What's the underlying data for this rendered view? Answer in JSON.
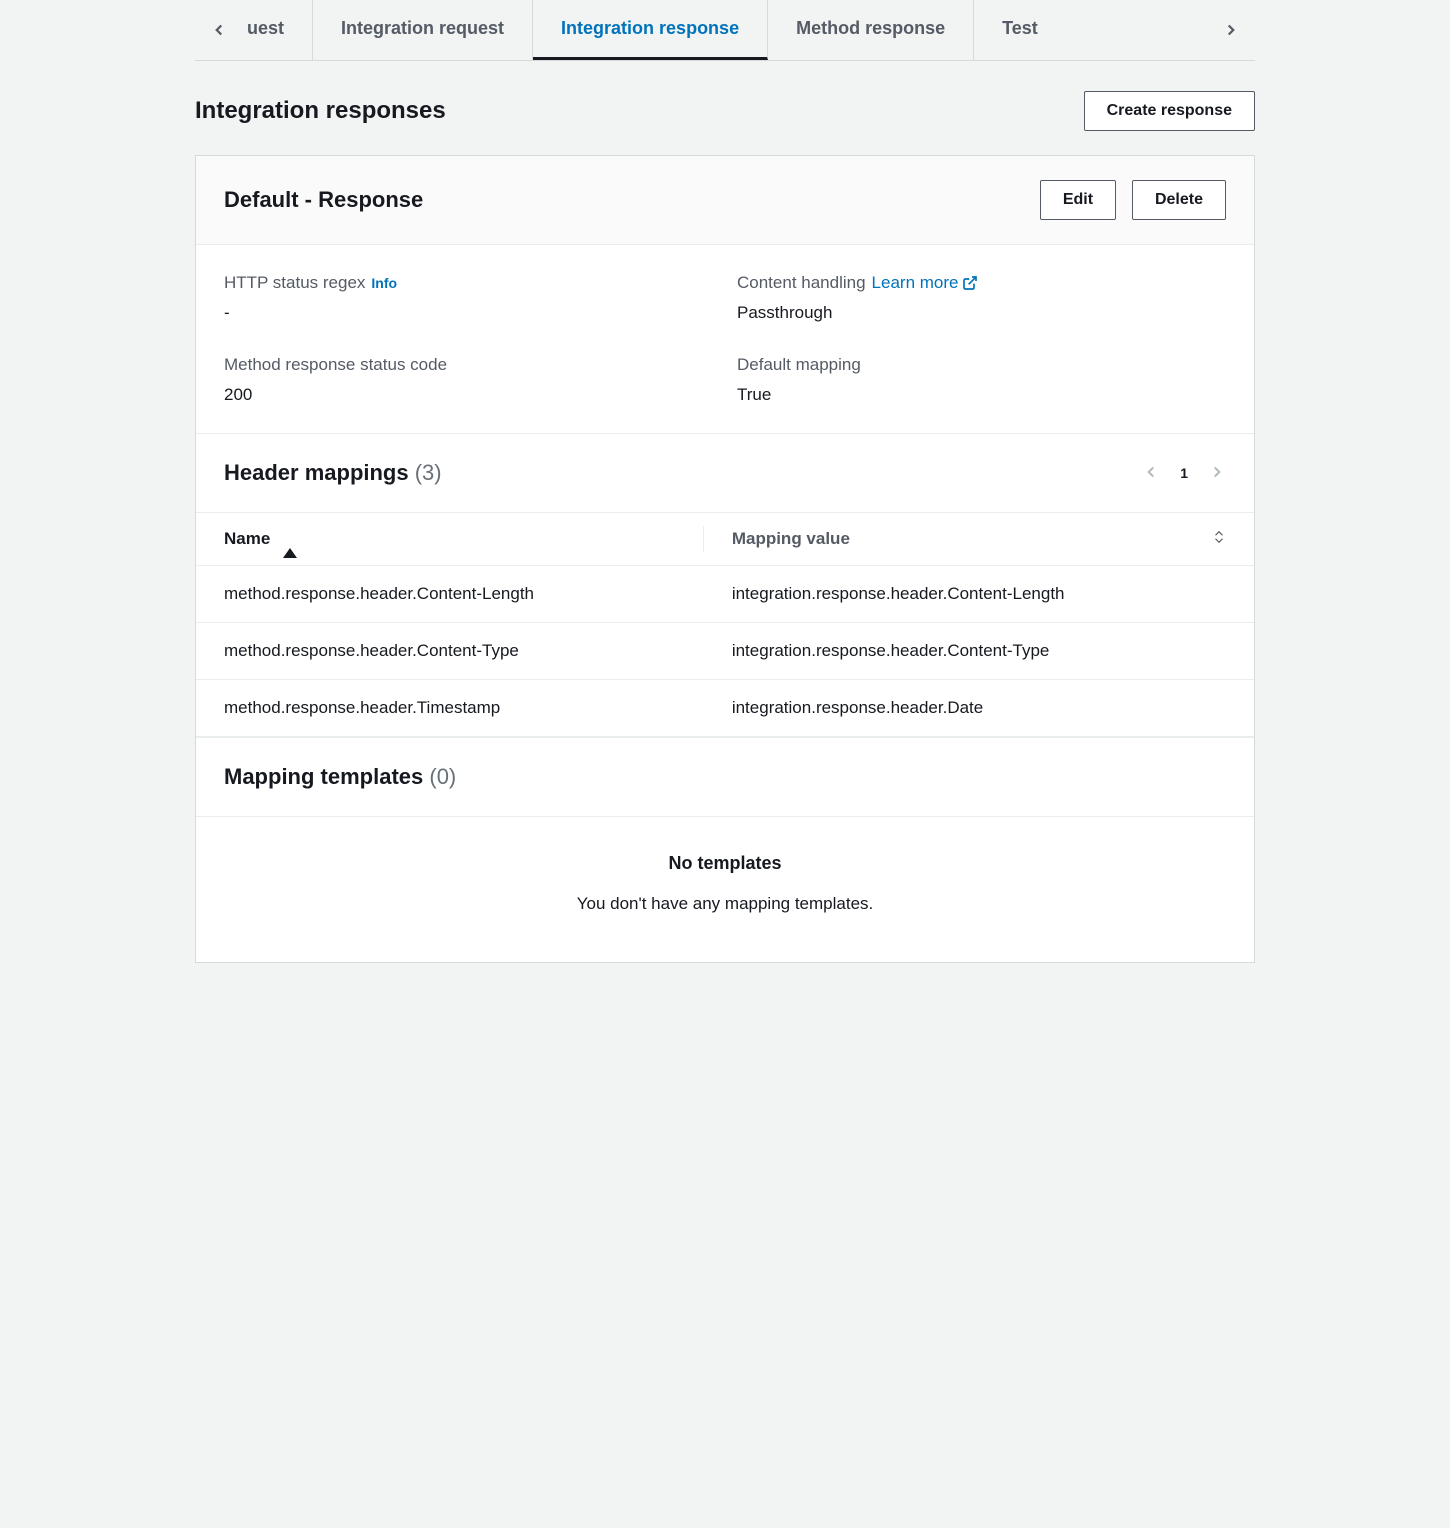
{
  "tabs": {
    "truncated": "uest",
    "items": [
      "Integration request",
      "Integration response",
      "Method response",
      "Test"
    ],
    "activeIndex": 1
  },
  "header": {
    "title": "Integration responses",
    "createBtn": "Create response"
  },
  "panel": {
    "title": "Default - Response",
    "editBtn": "Edit",
    "deleteBtn": "Delete",
    "fields": {
      "httpStatusRegex": {
        "label": "HTTP status regex",
        "info": "Info",
        "value": "-"
      },
      "contentHandling": {
        "label": "Content handling",
        "learnMore": "Learn more",
        "value": "Passthrough"
      },
      "methodResponseCode": {
        "label": "Method response status code",
        "value": "200"
      },
      "defaultMapping": {
        "label": "Default mapping",
        "value": "True"
      }
    }
  },
  "headerMappings": {
    "title": "Header mappings",
    "count": "(3)",
    "page": "1",
    "columns": [
      "Name",
      "Mapping value"
    ],
    "rows": [
      {
        "name": "method.response.header.Content-Length",
        "value": "integration.response.header.Content-Length"
      },
      {
        "name": "method.response.header.Content-Type",
        "value": "integration.response.header.Content-Type"
      },
      {
        "name": "method.response.header.Timestamp",
        "value": "integration.response.header.Date"
      }
    ]
  },
  "mappingTemplates": {
    "title": "Mapping templates",
    "count": "(0)",
    "emptyTitle": "No templates",
    "emptySub": "You don't have any mapping templates."
  }
}
